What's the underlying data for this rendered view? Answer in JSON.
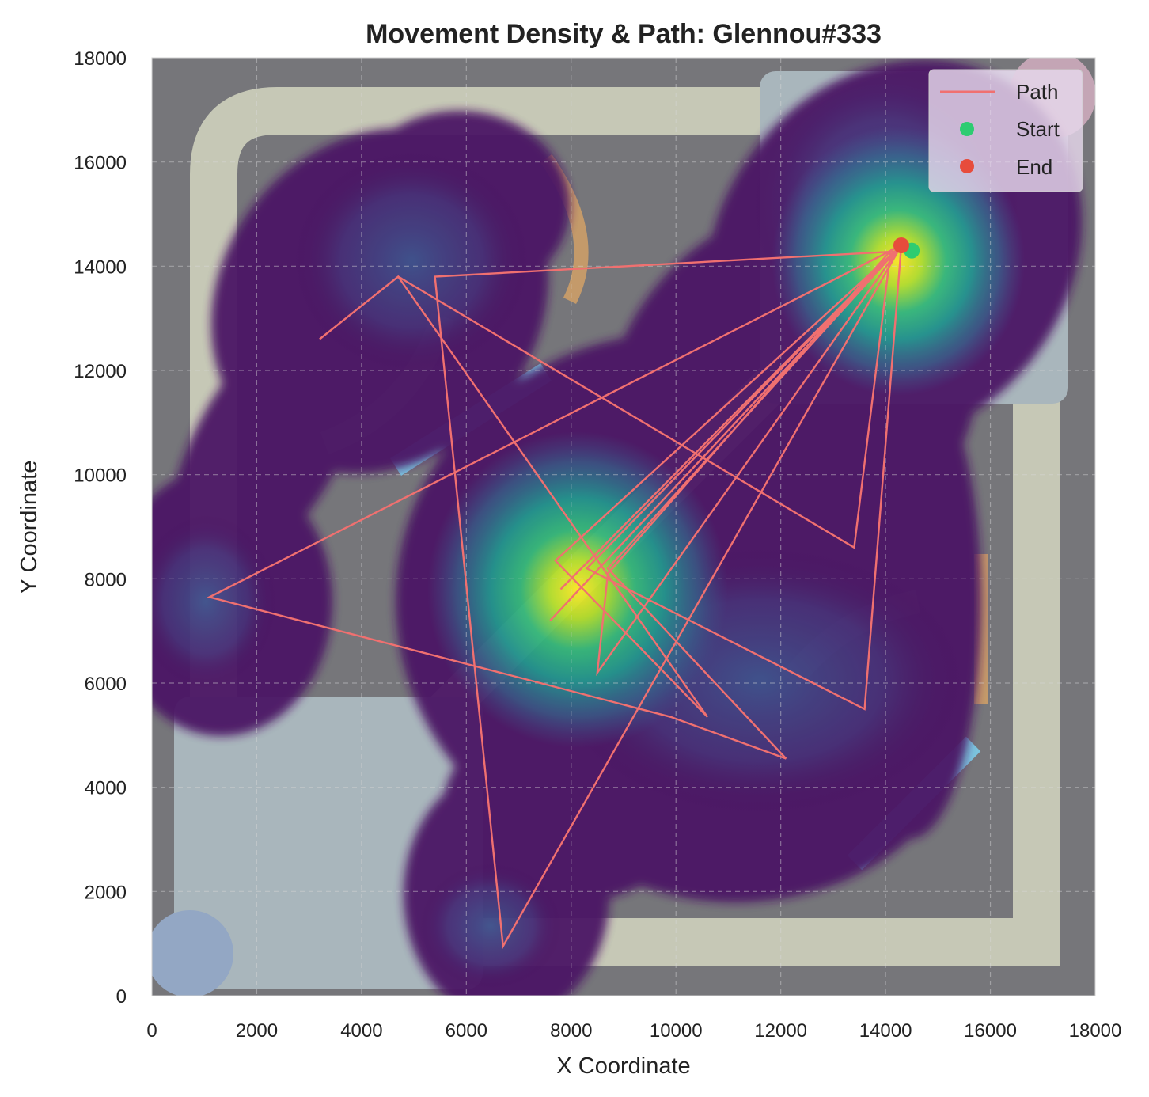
{
  "chart_data": {
    "type": "scatter",
    "title": "Movement Density & Path: Glennou#333",
    "xlabel": "X Coordinate",
    "ylabel": "Y Coordinate",
    "xlim": [
      0,
      18000
    ],
    "ylim": [
      0,
      18000
    ],
    "xticks": [
      0,
      2000,
      4000,
      6000,
      8000,
      10000,
      12000,
      14000,
      16000,
      18000
    ],
    "yticks": [
      0,
      2000,
      4000,
      6000,
      8000,
      10000,
      12000,
      14000,
      16000,
      18000
    ],
    "grid": true,
    "legend_position": "top-right",
    "legend": [
      {
        "label": "Path",
        "kind": "line",
        "color": "#f07070"
      },
      {
        "label": "Start",
        "kind": "marker",
        "color": "#2ecc71"
      },
      {
        "label": "End",
        "kind": "marker",
        "color": "#e74c3c"
      }
    ],
    "path": {
      "name": "Path",
      "color": "#f07070",
      "x": [
        14500,
        5400,
        6700,
        14300,
        7600,
        14300,
        13600,
        8300,
        14300,
        7800,
        14300,
        8700,
        12100,
        9900,
        1100,
        14300,
        8500,
        8700,
        14100,
        13400,
        4700,
        3200,
        4700,
        10600,
        7700,
        14300
      ],
      "y": [
        14300,
        13800,
        950,
        14400,
        7200,
        14400,
        5500,
        8200,
        14400,
        7800,
        14400,
        8200,
        4550,
        5350,
        7650,
        14400,
        6200,
        8100,
        14300,
        8600,
        13800,
        12600,
        13800,
        5350,
        8350,
        14400
      ]
    },
    "start": {
      "label": "Start",
      "x": 14500,
      "y": 14300,
      "color": "#2ecc71"
    },
    "end": {
      "label": "End",
      "x": 14300,
      "y": 14400,
      "color": "#e74c3c"
    },
    "density": {
      "colormap": "viridis",
      "peaks": [
        {
          "x": 14300,
          "y": 14300,
          "intensity": 1.0
        },
        {
          "x": 8200,
          "y": 7700,
          "intensity": 1.0
        },
        {
          "x": 5000,
          "y": 13800,
          "intensity": 0.3
        },
        {
          "x": 1200,
          "y": 7600,
          "intensity": 0.2
        },
        {
          "x": 6800,
          "y": 1000,
          "intensity": 0.2
        },
        {
          "x": 12500,
          "y": 6000,
          "intensity": 0.25
        }
      ]
    }
  }
}
